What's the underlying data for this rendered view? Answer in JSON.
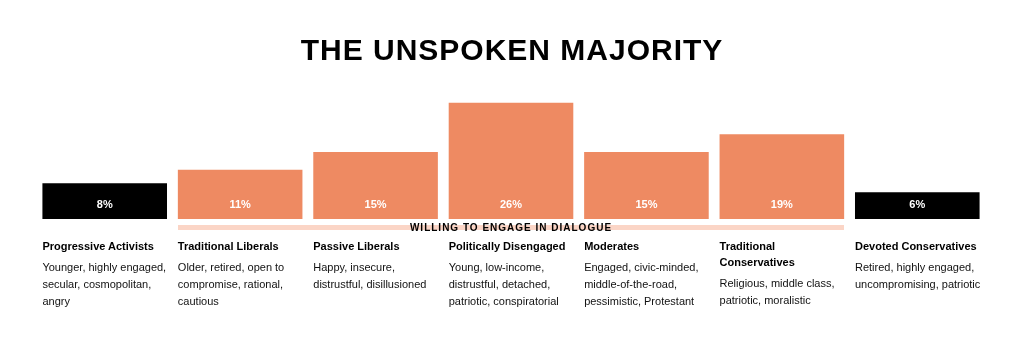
{
  "chart_data": {
    "type": "bar",
    "title": "THE UNSPOKEN MAJORITY",
    "categories": [
      "Progressive Activists",
      "Traditional Liberals",
      "Passive Liberals",
      "Politically Disengaged",
      "Moderates",
      "Traditional Conservatives",
      "Devoted Conservatives"
    ],
    "values": [
      8,
      11,
      15,
      26,
      15,
      19,
      6
    ],
    "value_labels": [
      "8%",
      "11%",
      "15%",
      "26%",
      "15%",
      "19%",
      "6%"
    ],
    "colors": [
      "#000000",
      "#ee8a62",
      "#ee8a62",
      "#ee8a62",
      "#ee8a62",
      "#ee8a62",
      "#000000"
    ],
    "annotations": [
      "Younger, highly engaged, secular, cosmopolitan, angry",
      "Older, retired, open to compromise, rational, cautious",
      "Happy, insecure, distrustful, disillusioned",
      "Young, low-income, distrustful, detached, patriotic, conspiratorial",
      "Engaged, civic-minded, middle-of-the-road, pessimistic, Protestant",
      "Religious, middle class, patriotic, moralistic",
      "Retired, highly engaged, uncompromising, patriotic",
      "WILLING TO ENGAGE IN DIALOGUE"
    ]
  }
}
